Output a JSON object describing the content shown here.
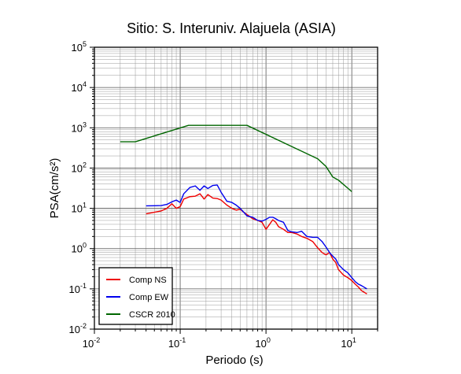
{
  "chart_data": {
    "type": "line",
    "title": "Sitio: S. Interuniv. Alajuela (ASIA)",
    "xlabel": "Periodo (s)",
    "ylabel": "PSA(cm/s²)",
    "xscale": "log",
    "yscale": "log",
    "xlim": [
      0.01,
      20
    ],
    "ylim": [
      0.01,
      100000
    ],
    "x_ticks": [
      {
        "base": "10",
        "exp": "-2"
      },
      {
        "base": "10",
        "exp": "-1"
      },
      {
        "base": "10",
        "exp": "0"
      },
      {
        "base": "10",
        "exp": "1"
      }
    ],
    "y_ticks": [
      {
        "base": "10",
        "exp": "-2"
      },
      {
        "base": "10",
        "exp": "-1"
      },
      {
        "base": "10",
        "exp": "0"
      },
      {
        "base": "10",
        "exp": "1"
      },
      {
        "base": "10",
        "exp": "2"
      },
      {
        "base": "10",
        "exp": "3"
      },
      {
        "base": "10",
        "exp": "4"
      },
      {
        "base": "10",
        "exp": "5"
      }
    ],
    "grid": true,
    "legend_position": "bottom-left",
    "series": [
      {
        "name": "Comp NS",
        "color": "#ee0000",
        "points": [
          [
            0.04,
            7.3
          ],
          [
            0.05,
            8.0
          ],
          [
            0.06,
            8.6
          ],
          [
            0.07,
            10.0
          ],
          [
            0.08,
            13.0
          ],
          [
            0.09,
            10.0
          ],
          [
            0.1,
            11.0
          ],
          [
            0.11,
            17.0
          ],
          [
            0.13,
            19.5
          ],
          [
            0.15,
            20.0
          ],
          [
            0.17,
            23.0
          ],
          [
            0.19,
            17.0
          ],
          [
            0.21,
            22.0
          ],
          [
            0.24,
            18.0
          ],
          [
            0.27,
            17.5
          ],
          [
            0.3,
            16.0
          ],
          [
            0.35,
            12.0
          ],
          [
            0.4,
            10.0
          ],
          [
            0.45,
            9.0
          ],
          [
            0.5,
            9.5
          ],
          [
            0.55,
            8.0
          ],
          [
            0.6,
            7.0
          ],
          [
            0.7,
            5.5
          ],
          [
            0.8,
            5.0
          ],
          [
            0.9,
            4.5
          ],
          [
            1.0,
            3.0
          ],
          [
            1.1,
            4.0
          ],
          [
            1.2,
            5.2
          ],
          [
            1.3,
            4.5
          ],
          [
            1.4,
            3.5
          ],
          [
            1.6,
            3.0
          ],
          [
            1.8,
            2.5
          ],
          [
            2.0,
            2.5
          ],
          [
            2.3,
            2.3
          ],
          [
            2.6,
            2.0
          ],
          [
            3.0,
            1.8
          ],
          [
            3.5,
            1.5
          ],
          [
            4.0,
            1.05
          ],
          [
            4.5,
            0.8
          ],
          [
            5.0,
            0.7
          ],
          [
            5.5,
            0.8
          ],
          [
            6.0,
            0.55
          ],
          [
            6.5,
            0.45
          ],
          [
            7.0,
            0.3
          ],
          [
            8.0,
            0.22
          ],
          [
            9.0,
            0.19
          ],
          [
            10.0,
            0.16
          ],
          [
            11.0,
            0.13
          ],
          [
            12.0,
            0.11
          ],
          [
            13.0,
            0.09
          ],
          [
            15.0,
            0.075
          ]
        ]
      },
      {
        "name": "Comp EW",
        "color": "#0000ee",
        "points": [
          [
            0.04,
            11.5
          ],
          [
            0.05,
            11.6
          ],
          [
            0.06,
            11.7
          ],
          [
            0.07,
            12.5
          ],
          [
            0.08,
            14.5
          ],
          [
            0.09,
            16.0
          ],
          [
            0.1,
            14.0
          ],
          [
            0.11,
            23.0
          ],
          [
            0.13,
            33.0
          ],
          [
            0.15,
            36.0
          ],
          [
            0.17,
            28.0
          ],
          [
            0.19,
            36.0
          ],
          [
            0.21,
            31.0
          ],
          [
            0.24,
            37.0
          ],
          [
            0.27,
            38.0
          ],
          [
            0.3,
            25.0
          ],
          [
            0.35,
            15.0
          ],
          [
            0.4,
            14.0
          ],
          [
            0.45,
            12.0
          ],
          [
            0.5,
            10.0
          ],
          [
            0.55,
            8.0
          ],
          [
            0.6,
            6.5
          ],
          [
            0.7,
            6.0
          ],
          [
            0.8,
            5.0
          ],
          [
            0.9,
            4.8
          ],
          [
            1.0,
            5.3
          ],
          [
            1.1,
            6.0
          ],
          [
            1.2,
            6.0
          ],
          [
            1.3,
            5.5
          ],
          [
            1.4,
            5.0
          ],
          [
            1.6,
            4.5
          ],
          [
            1.8,
            2.8
          ],
          [
            2.0,
            2.6
          ],
          [
            2.3,
            2.5
          ],
          [
            2.6,
            2.7
          ],
          [
            3.0,
            2.0
          ],
          [
            3.5,
            1.9
          ],
          [
            4.0,
            1.9
          ],
          [
            4.5,
            1.5
          ],
          [
            5.0,
            1.1
          ],
          [
            5.5,
            0.8
          ],
          [
            6.0,
            0.65
          ],
          [
            6.5,
            0.55
          ],
          [
            7.0,
            0.4
          ],
          [
            8.0,
            0.3
          ],
          [
            9.0,
            0.25
          ],
          [
            10.0,
            0.19
          ],
          [
            11.0,
            0.15
          ],
          [
            12.0,
            0.13
          ],
          [
            13.0,
            0.12
          ],
          [
            15.0,
            0.1
          ]
        ]
      },
      {
        "name": "CSCR 2010",
        "color": "#006600",
        "points": [
          [
            0.02,
            450
          ],
          [
            0.03,
            450
          ],
          [
            0.125,
            1150
          ],
          [
            0.6,
            1150
          ],
          [
            4.0,
            170
          ],
          [
            5.0,
            110
          ],
          [
            6.0,
            60
          ],
          [
            7.0,
            50
          ],
          [
            10.0,
            26
          ]
        ]
      }
    ]
  }
}
